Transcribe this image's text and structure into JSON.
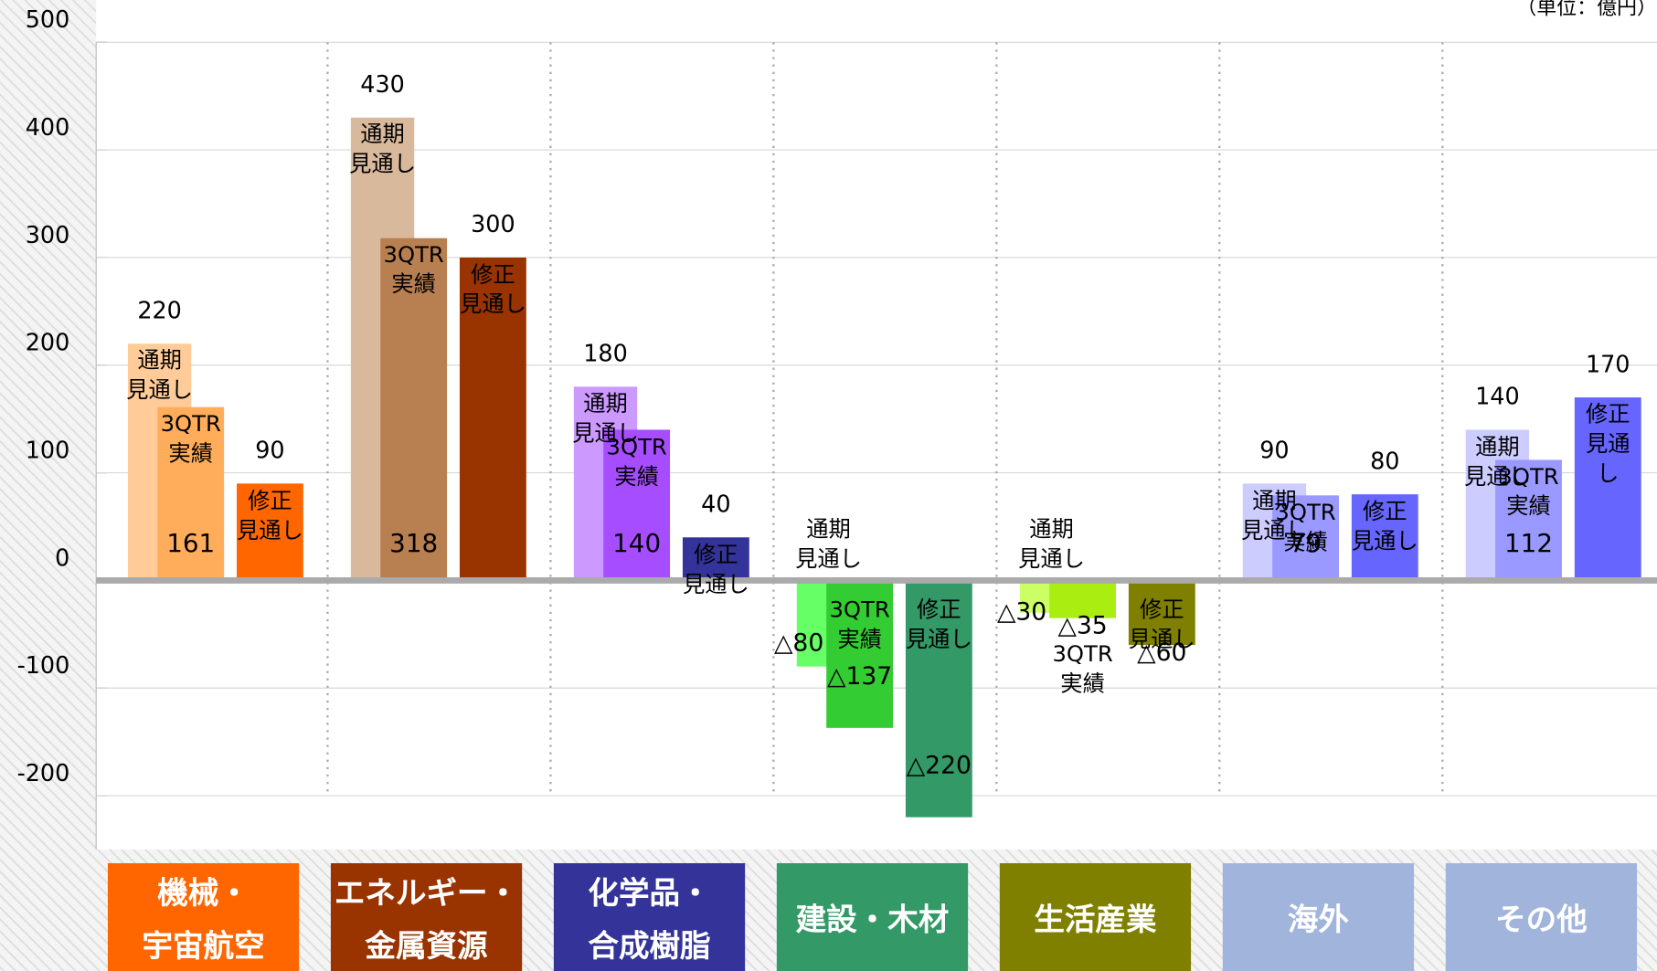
{
  "chart_data": {
    "type": "bar",
    "unit_note": "（単位：億円）",
    "categories": [
      "機械・\n宇宙航空",
      "エネルギー・\n金属資源",
      "化学品・\n合成樹脂",
      "建設・木材",
      "生活産業",
      "海外",
      "その他"
    ],
    "category_colors": [
      "#ff6600",
      "#993300",
      "#333399",
      "#339966",
      "#808000",
      "#a0b4dc",
      "#a0b4dc"
    ],
    "series": [
      {
        "name": "通期\n見通し",
        "colors": [
          "#ffcc99",
          "#d9b99b",
          "#cc99ff",
          "#66ff66",
          "#ccff66",
          "#ccccff",
          "#ccccff"
        ],
        "values": [
          220,
          430,
          180,
          -80,
          -30,
          90,
          140
        ],
        "value_labels": [
          "220",
          "430",
          "180",
          "△80",
          "△30",
          "90",
          "140"
        ]
      },
      {
        "name": "3QTR\n実績",
        "colors": [
          "#ffad5b",
          "#b87f50",
          "#a64dff",
          "#33cc33",
          "#aaee11",
          "#9999ff",
          "#9999ff"
        ],
        "values": [
          161,
          318,
          140,
          -137,
          -35,
          79,
          112
        ],
        "value_labels": [
          "161",
          "318",
          "140",
          "△137",
          "△35",
          "79",
          "112"
        ]
      },
      {
        "name": "修正\n見通し",
        "colors": [
          "#ff6600",
          "#993300",
          "#333399",
          "#339966",
          "#808000",
          "#6666ff",
          "#6666ff"
        ],
        "values": [
          90,
          300,
          40,
          -220,
          -60,
          80,
          170
        ],
        "value_labels": [
          "90",
          "300",
          "40",
          "△220",
          "△60",
          "80",
          "170"
        ]
      }
    ],
    "ylim": [
      -250,
      500
    ],
    "yticks": [
      500,
      400,
      300,
      200,
      100,
      0,
      -100,
      -200
    ],
    "grid": true
  }
}
